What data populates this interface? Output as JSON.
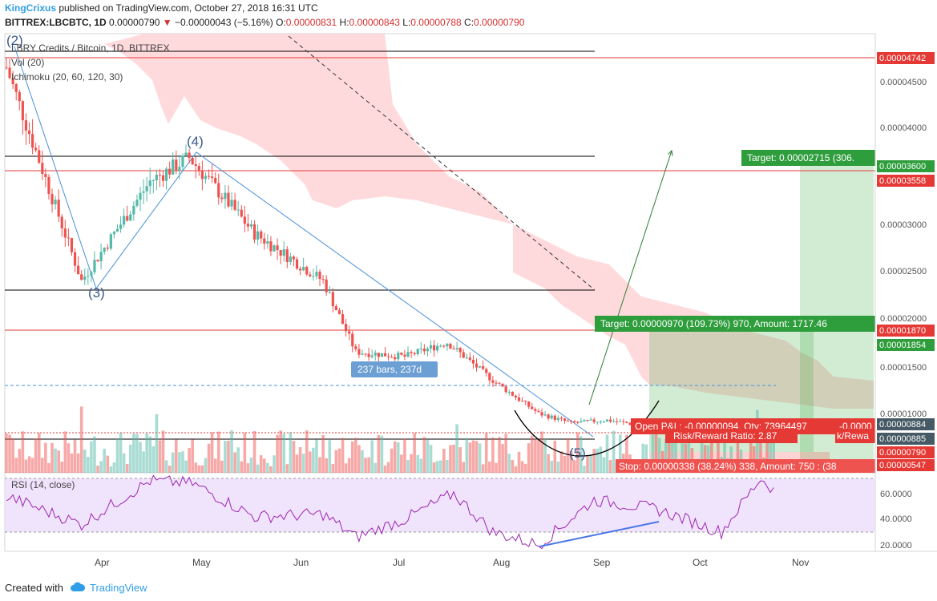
{
  "header": {
    "author": "KingCrixus",
    "published": "published on TradingView.com, October 27, 2018 16:31 UTC",
    "symbol": "BITTREX:LBCBTC, 1D",
    "last": "0.00000790",
    "change_arrow": "▼",
    "change": "−0.00000043 (−5.16%)",
    "o_label": "O:",
    "o": "0.00000831",
    "h_label": "H:",
    "h": "0.00000843",
    "l_label": "L:",
    "l": "0.00000788",
    "c_label": "C:",
    "c": "0.00000790"
  },
  "legend": {
    "title": "LBRY Credits / Bitcoin, 1D, BITTREX",
    "vol": "Vol (20)",
    "ichimoku": "Ichimoku (20, 60, 120, 30)",
    "rsi": "RSI (14, close)"
  },
  "colors": {
    "up": "#53b9a8",
    "down": "#ef5350",
    "cloud": "#ffcdd2",
    "rsi_band": "#e9d7fb",
    "rsi_line": "#9c27b0",
    "trend": "#4a90d9",
    "red_level": "#e53935",
    "arrow": "#2e7d32",
    "target_green": "#4caf50",
    "stop_red": "#ef5350"
  },
  "waves": [
    "(2)",
    "(3)",
    "(4)",
    "(5)"
  ],
  "annotations": {
    "bars": "237 bars, 237d",
    "target_short": "Target: 0.00002715 (306.",
    "target_long": "Target: 0.00000970 (109.73%) 970, Amount: 1717.46",
    "open_pl": "Open P&L: -0.00000094, Qty: 73964497",
    "open_pl_tail": "-0.0000",
    "risk_reward": "Risk/Reward Ratio: 2.87",
    "risk_reward_tail": "k/Rewa",
    "stop": "Stop: 0.00000338 (38.24%) 338, Amount: 750 : (38"
  },
  "price_axis": {
    "ticks": [
      "0.00004500",
      "0.00004000",
      "0.00003000",
      "0.00002500",
      "0.00002000",
      "0.00001500",
      "0.00001000"
    ],
    "labels": {
      "l4742": "0.00004742",
      "l3600": "0.00003600",
      "l3558": "0.00003558",
      "l1870": "0.00001870",
      "l1854": "0.00001854",
      "l884": "0.00000884",
      "l885": "0.00000885",
      "l790": "0.00000790",
      "l547": "0.00000547"
    }
  },
  "rsi_axis": [
    "60.0000",
    "40.0000",
    "20.0000"
  ],
  "time_axis": [
    "Apr",
    "May",
    "Jun",
    "Jul",
    "Aug",
    "Sep",
    "Oct",
    "Nov"
  ],
  "footer": {
    "created": "Created with",
    "brand": "TradingView"
  },
  "chart_data": {
    "type": "candlestick",
    "title": "LBRY Credits / Bitcoin, 1D, BITTREX",
    "ohlc_last": {
      "open": 8.31e-06,
      "high": 8.43e-06,
      "low": 7.88e-06,
      "close": 7.9e-06
    },
    "close_path": {
      "x": [
        "2018-03-05",
        "2018-03-28",
        "2018-04-18",
        "2018-04-30",
        "2018-05-20",
        "2018-06-10",
        "2018-06-20",
        "2018-07-05",
        "2018-07-18",
        "2018-08-01",
        "2018-08-15",
        "2018-08-25",
        "2018-09-05",
        "2018-09-20",
        "2018-10-05",
        "2018-10-20",
        "2018-10-26"
      ],
      "close": [
        4.65e-05,
        2.4e-05,
        3.45e-05,
        3.7e-05,
        2.9e-05,
        2.4e-05,
        1.65e-05,
        1.6e-05,
        1.75e-05,
        1.35e-05,
        1e-05,
        9e-06,
        9.3e-06,
        8.5e-06,
        8.3e-06,
        8.1e-06,
        7.9e-06
      ]
    },
    "levels": [
      4.742e-05,
      3.6e-05,
      3.558e-05,
      1.87e-05,
      1.854e-05,
      8.85e-06,
      8.84e-06,
      7.9e-06,
      5.47e-06
    ],
    "rsi": {
      "x": [
        "2018-03-05",
        "2018-03-28",
        "2018-04-18",
        "2018-05-01",
        "2018-05-20",
        "2018-06-10",
        "2018-06-20",
        "2018-07-05",
        "2018-07-20",
        "2018-08-01",
        "2018-08-15",
        "2018-09-01",
        "2018-09-20",
        "2018-10-10",
        "2018-10-22",
        "2018-10-26"
      ],
      "values": [
        58,
        36,
        70,
        68,
        42,
        44,
        26,
        40,
        60,
        30,
        20,
        55,
        48,
        30,
        72,
        63
      ]
    },
    "rsi_bands": [
      30,
      70
    ],
    "series": [
      {
        "name": "Vol (20)"
      },
      {
        "name": "Ichimoku (20, 60, 120, 30)"
      },
      {
        "name": "RSI (14, close)"
      }
    ]
  }
}
